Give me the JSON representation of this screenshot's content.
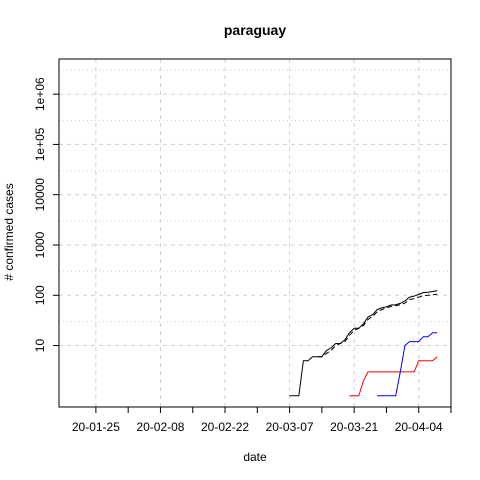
{
  "chart_data": {
    "type": "line",
    "title": "paraguay",
    "xlabel": "date",
    "ylabel": "# confirmed cases",
    "x_scale": "date",
    "y_scale": "log",
    "xlim": [
      "2020-01-17",
      "2020-04-11"
    ],
    "ylim": [
      0.6,
      5000000
    ],
    "x_tick_dates": [
      "2020-01-25",
      "2020-02-08",
      "2020-02-22",
      "2020-03-07",
      "2020-03-21",
      "2020-04-04"
    ],
    "x_tick_labels": [
      "20-01-25",
      "20-02-08",
      "20-02-22",
      "20-03-07",
      "20-03-21",
      "20-04-04"
    ],
    "x_minor_tick_dates": [
      "2020-02-01",
      "2020-02-15",
      "2020-02-29",
      "2020-03-14",
      "2020-03-28",
      "2020-04-11"
    ],
    "y_ticks": [
      10,
      100,
      1000,
      10000,
      100000,
      1000000
    ],
    "y_tick_labels": [
      "10",
      "100",
      "1000",
      "10000",
      "1e+05",
      "1e+06"
    ],
    "grid": true,
    "series": [
      {
        "color": "#000000",
        "dash": "",
        "x": [
          "2020-03-07",
          "2020-03-08",
          "2020-03-09",
          "2020-03-10",
          "2020-03-11",
          "2020-03-12",
          "2020-03-13",
          "2020-03-14",
          "2020-03-15",
          "2020-03-16",
          "2020-03-17",
          "2020-03-18",
          "2020-03-19",
          "2020-03-20",
          "2020-03-21",
          "2020-03-22",
          "2020-03-23",
          "2020-03-24",
          "2020-03-25",
          "2020-03-26",
          "2020-03-27",
          "2020-03-28",
          "2020-03-29",
          "2020-03-30",
          "2020-03-31",
          "2020-04-01",
          "2020-04-02",
          "2020-04-03",
          "2020-04-04",
          "2020-04-05",
          "2020-04-06",
          "2020-04-07",
          "2020-04-08"
        ],
        "y": [
          1,
          1,
          1,
          5,
          5,
          6,
          6,
          6,
          8,
          9,
          11,
          11,
          13,
          18,
          22,
          22,
          27,
          37,
          41,
          52,
          56,
          59,
          64,
          65,
          69,
          77,
          92,
          96,
          104,
          113,
          115,
          119,
          124
        ]
      },
      {
        "color": "#000000",
        "dash": "5,3",
        "x": [
          "2020-03-13",
          "2020-03-14",
          "2020-03-15",
          "2020-03-16",
          "2020-03-17",
          "2020-03-18",
          "2020-03-19",
          "2020-03-20",
          "2020-03-21",
          "2020-03-22",
          "2020-03-23",
          "2020-03-24",
          "2020-03-25",
          "2020-03-26",
          "2020-03-27",
          "2020-03-28",
          "2020-03-29",
          "2020-03-30",
          "2020-03-31",
          "2020-04-01",
          "2020-04-02",
          "2020-04-03",
          "2020-04-04",
          "2020-04-05",
          "2020-04-06",
          "2020-04-07",
          "2020-04-08"
        ],
        "y": [
          6,
          6,
          7,
          8,
          10,
          11,
          12,
          16,
          20,
          22,
          25,
          33,
          38,
          47,
          52,
          56,
          60,
          62,
          65,
          70,
          82,
          86,
          92,
          97,
          100,
          102,
          105
        ]
      },
      {
        "color": "#ff0000",
        "dash": "",
        "x": [
          "2020-03-20",
          "2020-03-21",
          "2020-03-22",
          "2020-03-23",
          "2020-03-24",
          "2020-03-25",
          "2020-03-26",
          "2020-03-27",
          "2020-03-28",
          "2020-03-29",
          "2020-03-30",
          "2020-03-31",
          "2020-04-01",
          "2020-04-02",
          "2020-04-03",
          "2020-04-04",
          "2020-04-05",
          "2020-04-06",
          "2020-04-07",
          "2020-04-08"
        ],
        "y": [
          1,
          1,
          1,
          2,
          3,
          3,
          3,
          3,
          3,
          3,
          3,
          3,
          3,
          3,
          3,
          5,
          5,
          5,
          5,
          6
        ]
      },
      {
        "color": "#0000ff",
        "dash": "",
        "x": [
          "2020-03-26",
          "2020-03-27",
          "2020-03-28",
          "2020-03-29",
          "2020-03-30",
          "2020-03-31",
          "2020-04-01",
          "2020-04-02",
          "2020-04-03",
          "2020-04-04",
          "2020-04-05",
          "2020-04-06",
          "2020-04-07",
          "2020-04-08"
        ],
        "y": [
          1,
          1,
          1,
          1,
          1,
          3,
          10,
          12,
          12,
          12,
          15,
          15,
          18,
          18
        ]
      }
    ]
  }
}
